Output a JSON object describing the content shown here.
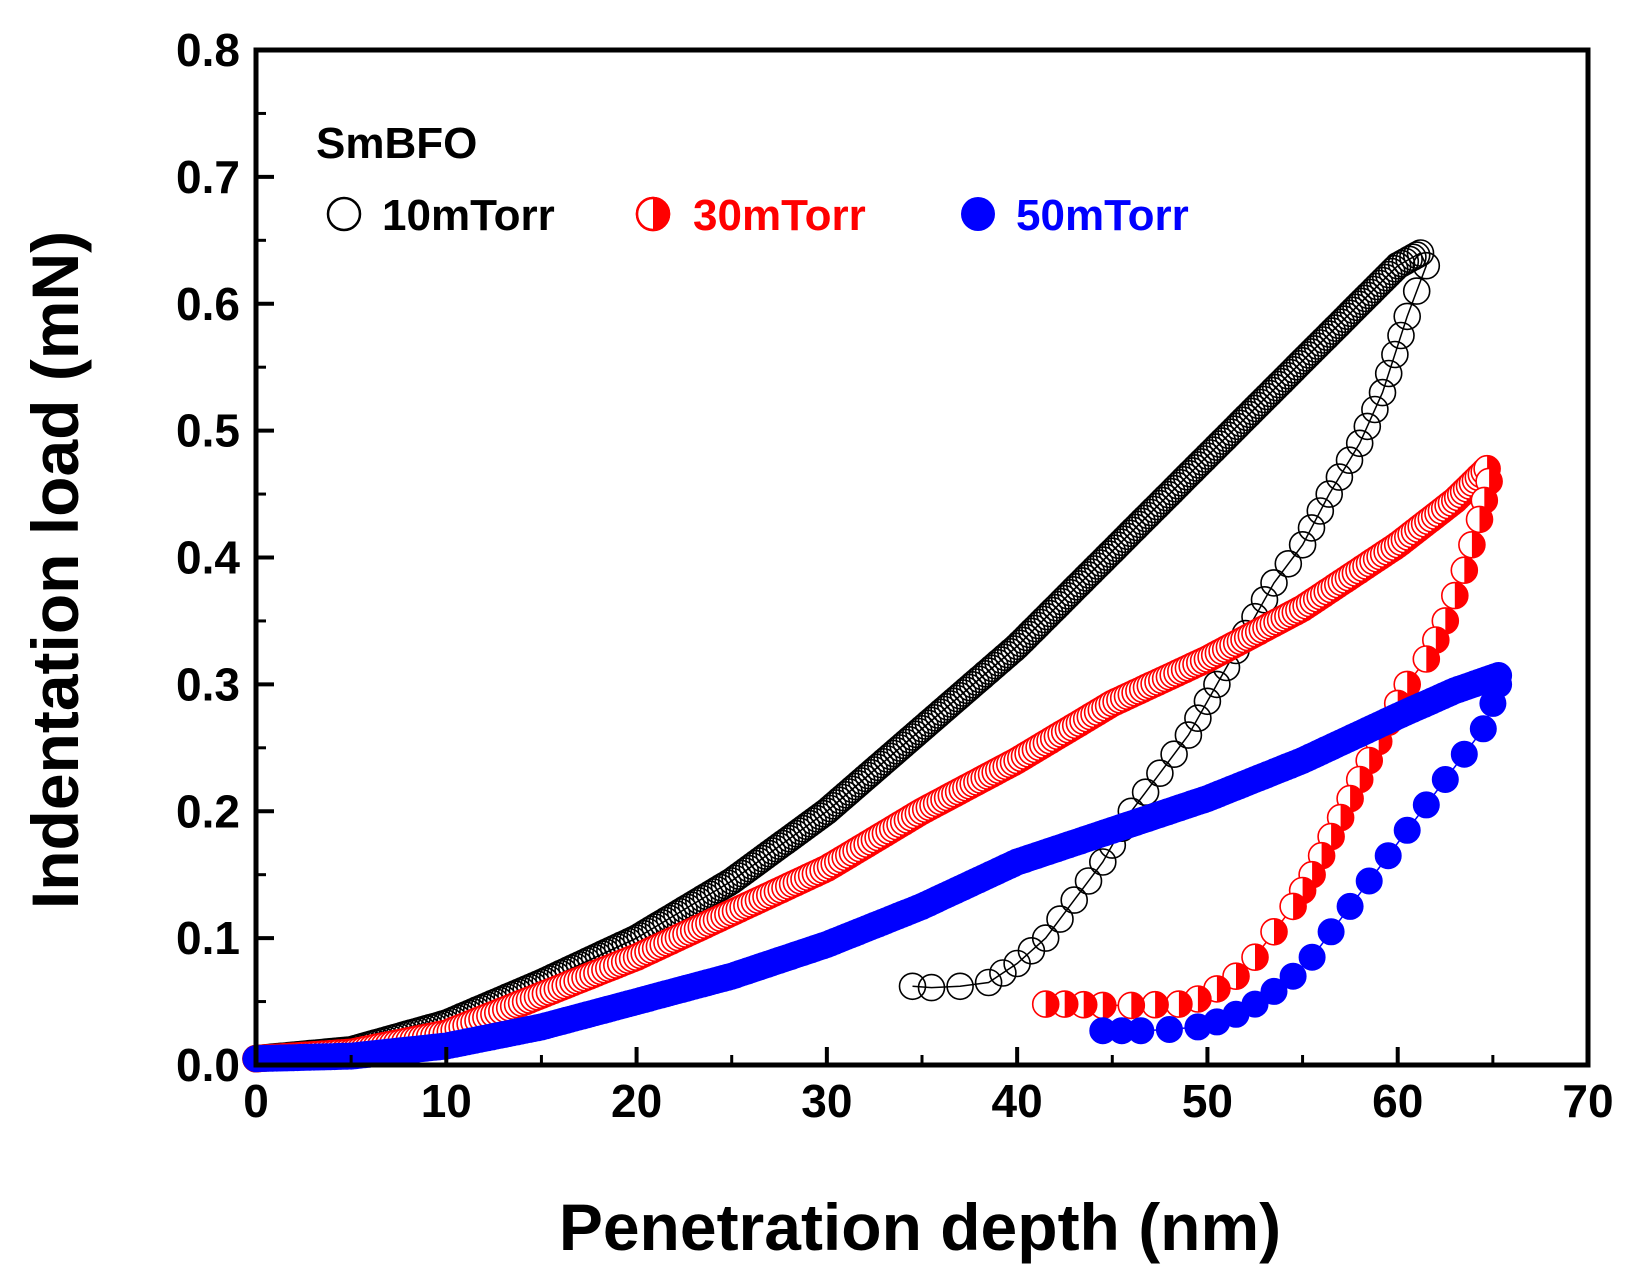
{
  "chart_data": {
    "type": "scatter",
    "title": "",
    "xlabel": "Penetration depth (nm)",
    "ylabel": "Indentation load (mN)",
    "xlim": [
      0,
      70
    ],
    "ylim": [
      0,
      0.8
    ],
    "xticks": [
      "0",
      "10",
      "20",
      "30",
      "40",
      "50",
      "60",
      "70"
    ],
    "yticks": [
      "0.0",
      "0.1",
      "0.2",
      "0.3",
      "0.4",
      "0.5",
      "0.6",
      "0.7",
      "0.8"
    ],
    "legend_title": "SmBFO",
    "legend_placement": "top-left",
    "grid": false,
    "series": [
      {
        "name": "10mTorr",
        "color": "#000000",
        "marker": "open-circle",
        "loading": [
          [
            0,
            0.005
          ],
          [
            5,
            0.012
          ],
          [
            10,
            0.033
          ],
          [
            15,
            0.065
          ],
          [
            20,
            0.1
          ],
          [
            25,
            0.145
          ],
          [
            30,
            0.2
          ],
          [
            35,
            0.265
          ],
          [
            40,
            0.33
          ],
          [
            45,
            0.405
          ],
          [
            50,
            0.48
          ],
          [
            55,
            0.555
          ],
          [
            60,
            0.63
          ],
          [
            61.2,
            0.64
          ]
        ],
        "unloading": [
          [
            61.5,
            0.63
          ],
          [
            60.5,
            0.59
          ],
          [
            59.2,
            0.53
          ],
          [
            58,
            0.49
          ],
          [
            56.4,
            0.45
          ],
          [
            55,
            0.41
          ],
          [
            53.5,
            0.38
          ],
          [
            52,
            0.34
          ],
          [
            50.5,
            0.3
          ],
          [
            49,
            0.26
          ],
          [
            47.5,
            0.23
          ],
          [
            46,
            0.2
          ],
          [
            44.5,
            0.16
          ],
          [
            43,
            0.13
          ],
          [
            41.5,
            0.1
          ],
          [
            40,
            0.08
          ],
          [
            38.5,
            0.065
          ],
          [
            37,
            0.062
          ],
          [
            35.5,
            0.061
          ],
          [
            34.5,
            0.062
          ]
        ]
      },
      {
        "name": "30mTorr",
        "color": "#ff0000",
        "marker": "half-filled-circle",
        "loading": [
          [
            0,
            0.005
          ],
          [
            5,
            0.01
          ],
          [
            10,
            0.025
          ],
          [
            15,
            0.055
          ],
          [
            20,
            0.085
          ],
          [
            25,
            0.12
          ],
          [
            30,
            0.155
          ],
          [
            35,
            0.2
          ],
          [
            40,
            0.24
          ],
          [
            45,
            0.285
          ],
          [
            50,
            0.32
          ],
          [
            55,
            0.36
          ],
          [
            60,
            0.41
          ],
          [
            63,
            0.445
          ],
          [
            64.7,
            0.47
          ]
        ],
        "unloading": [
          [
            64.8,
            0.46
          ],
          [
            64.3,
            0.43
          ],
          [
            63.5,
            0.39
          ],
          [
            62.5,
            0.35
          ],
          [
            61.5,
            0.32
          ],
          [
            60.5,
            0.3
          ],
          [
            59.5,
            0.27
          ],
          [
            58.5,
            0.24
          ],
          [
            57.5,
            0.21
          ],
          [
            56.5,
            0.18
          ],
          [
            55.5,
            0.15
          ],
          [
            54.5,
            0.125
          ],
          [
            53.5,
            0.105
          ],
          [
            52.5,
            0.085
          ],
          [
            51.5,
            0.07
          ],
          [
            50.5,
            0.06
          ],
          [
            49.5,
            0.052
          ],
          [
            48.5,
            0.048
          ],
          [
            46,
            0.047
          ],
          [
            44.5,
            0.047
          ],
          [
            42.5,
            0.048
          ],
          [
            41.5,
            0.048
          ]
        ]
      },
      {
        "name": "50mTorr",
        "color": "#0000ff",
        "marker": "filled-circle",
        "loading": [
          [
            0,
            0.005
          ],
          [
            5,
            0.007
          ],
          [
            10,
            0.015
          ],
          [
            15,
            0.03
          ],
          [
            20,
            0.05
          ],
          [
            25,
            0.07
          ],
          [
            30,
            0.095
          ],
          [
            35,
            0.125
          ],
          [
            40,
            0.16
          ],
          [
            45,
            0.185
          ],
          [
            50,
            0.21
          ],
          [
            55,
            0.24
          ],
          [
            60,
            0.275
          ],
          [
            63,
            0.295
          ],
          [
            65.3,
            0.307
          ]
        ],
        "unloading": [
          [
            65.3,
            0.3
          ],
          [
            65,
            0.285
          ],
          [
            64.5,
            0.265
          ],
          [
            63.5,
            0.245
          ],
          [
            62.5,
            0.225
          ],
          [
            61.5,
            0.205
          ],
          [
            60.5,
            0.185
          ],
          [
            59.5,
            0.165
          ],
          [
            58.5,
            0.145
          ],
          [
            57.5,
            0.125
          ],
          [
            56.5,
            0.105
          ],
          [
            55.5,
            0.085
          ],
          [
            54.5,
            0.07
          ],
          [
            53.5,
            0.058
          ],
          [
            52.5,
            0.048
          ],
          [
            51.5,
            0.04
          ],
          [
            50.5,
            0.034
          ],
          [
            49.5,
            0.03
          ],
          [
            48,
            0.028
          ],
          [
            46.5,
            0.027
          ],
          [
            45.5,
            0.027
          ],
          [
            44.5,
            0.027
          ]
        ]
      }
    ]
  }
}
